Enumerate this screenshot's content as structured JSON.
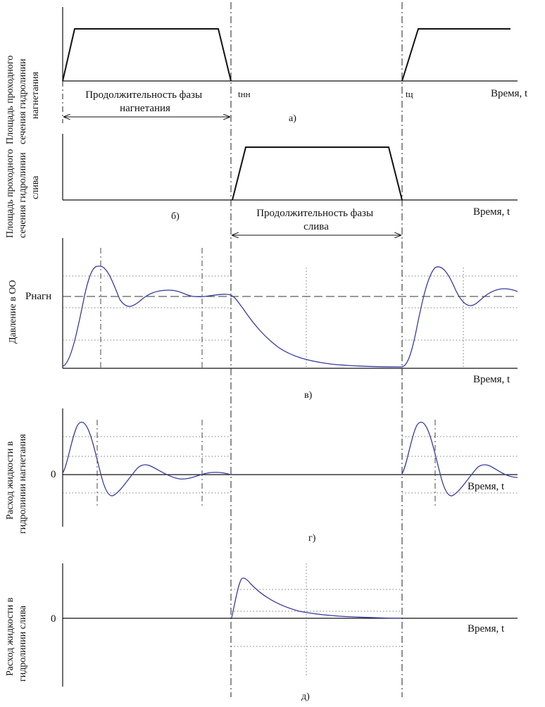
{
  "colors": {
    "axis": "#111111",
    "curve": "#3a3aa0",
    "grid": "#555555"
  },
  "panel_a": {
    "ylabel_lines": [
      "Площадь проходного",
      "сечения гидролинии",
      "нагнетания"
    ],
    "xlabel": "Время, t",
    "caption": "а)",
    "phase_label_lines": [
      "Продолжительность фазы",
      "нагнетания"
    ],
    "t_label_1": "tнн",
    "t_label_2": "tц"
  },
  "panel_b": {
    "ylabel_lines": [
      "Площадь проходного",
      "сечения гидролинии",
      "слива"
    ],
    "xlabel": "Время, t",
    "caption": "б)",
    "phase_label_lines": [
      "Продолжительность фазы",
      "слива"
    ]
  },
  "panel_c": {
    "ylabel": "Давление в ОО",
    "level_label": "Pнагн",
    "xlabel": "Время, t",
    "caption": "в)"
  },
  "panel_d": {
    "ylabel_lines": [
      "Расход жидкости в",
      "гидролинии нагнетания"
    ],
    "zero_label": "0",
    "xlabel": "Время, t",
    "caption": "г)"
  },
  "panel_e": {
    "ylabel_lines": [
      "Расход жидкости в",
      "гидролинии слива"
    ],
    "zero_label": "0",
    "xlabel": "Время, t",
    "caption": "д)"
  }
}
